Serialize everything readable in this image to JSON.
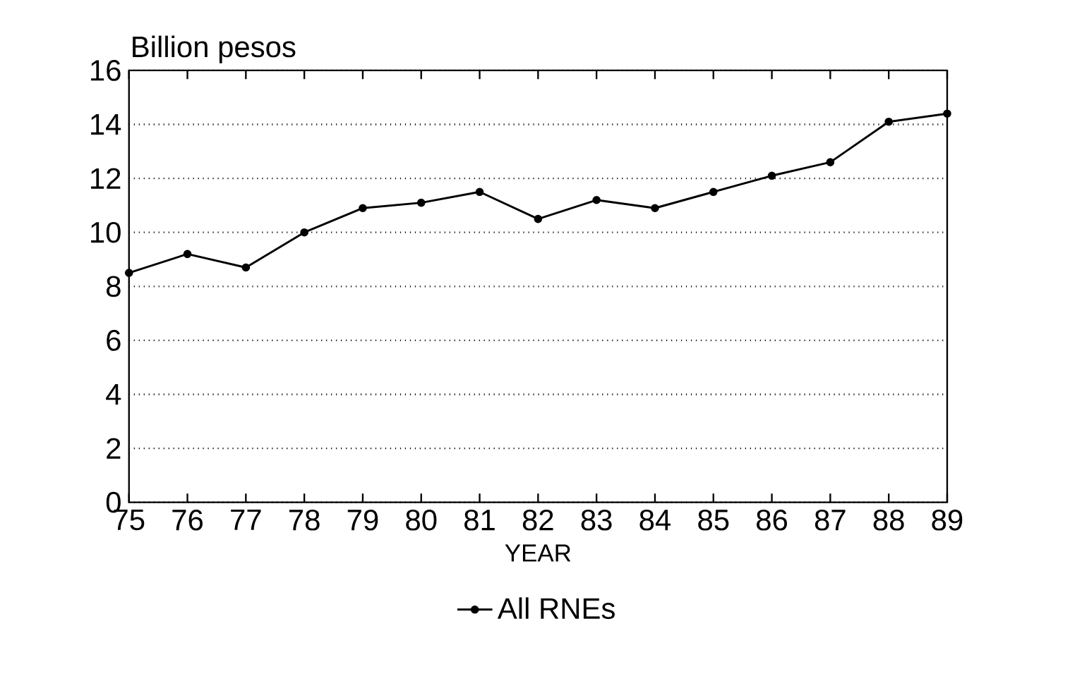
{
  "chart_data": {
    "type": "line",
    "ylabel": "Billion pesos",
    "xlabel": "YEAR",
    "x": [
      75,
      76,
      77,
      78,
      79,
      80,
      81,
      82,
      83,
      84,
      85,
      86,
      87,
      88,
      89
    ],
    "series": [
      {
        "name": "All RNEs",
        "color": "#000000",
        "values": [
          8.5,
          9.2,
          8.7,
          10.0,
          10.9,
          11.1,
          11.5,
          10.5,
          11.2,
          10.9,
          11.5,
          12.1,
          12.6,
          14.1,
          14.4
        ]
      }
    ],
    "xlim": [
      75,
      89
    ],
    "xticks": [
      75,
      76,
      77,
      78,
      79,
      80,
      81,
      82,
      83,
      84,
      85,
      86,
      87,
      88,
      89
    ],
    "ylim": [
      0,
      16
    ],
    "yticks": [
      0,
      2,
      4,
      6,
      8,
      10,
      12,
      14,
      16
    ],
    "grid": "y",
    "legend": "bottom",
    "marker": "circle",
    "line_style": "solid"
  }
}
